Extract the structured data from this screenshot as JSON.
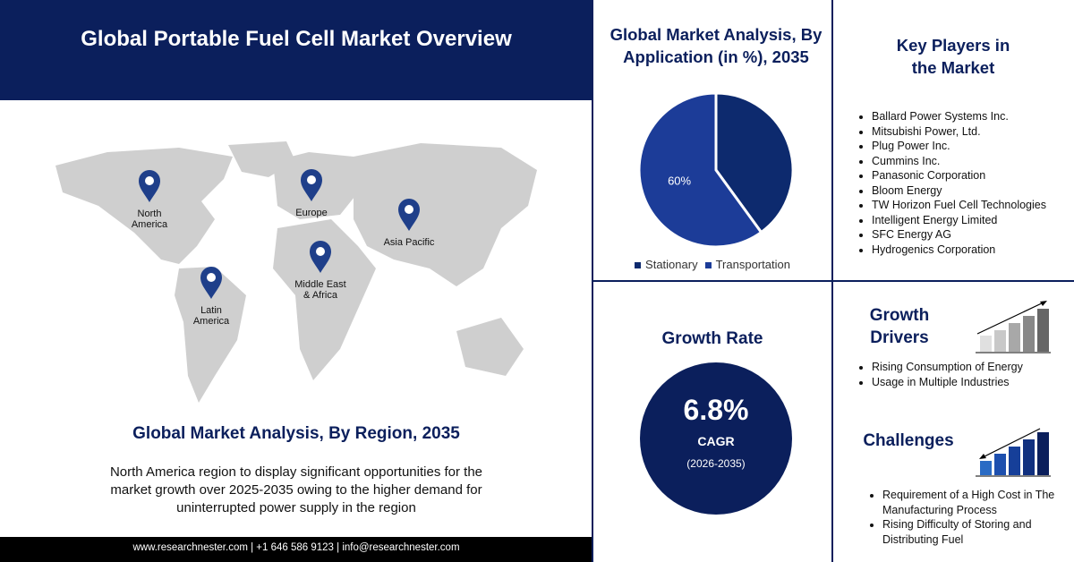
{
  "header": {
    "title": "Global Portable Fuel Cell Market Overview"
  },
  "map": {
    "regions": [
      [
        "North",
        "America"
      ],
      [
        "Europe"
      ],
      [
        "Asia Pacific"
      ],
      [
        "Middle East",
        "& Africa"
      ],
      [
        "Latin",
        "America"
      ]
    ]
  },
  "region_analysis": {
    "title": "Global Market Analysis, By Region, 2035",
    "description": "North America region to display significant opportunities for the market growth over 2025-2035 owing to the higher demand for uninterrupted power supply in the region"
  },
  "footer": {
    "contact": "www.researchnester.com | +1 646 586 9123 | info@researchnester.com"
  },
  "chart_data": {
    "type": "pie",
    "title": "Global Market Analysis, By Application (in %), 2035",
    "categories": [
      "Stationary",
      "Transportation"
    ],
    "values": [
      40,
      60
    ],
    "value_labels": [
      null,
      "60%"
    ],
    "colors": [
      "#0d2a6e",
      "#1c3c98"
    ]
  },
  "key_players": {
    "title": "Key Players in the Market",
    "items": [
      "Ballard Power Systems Inc.",
      "Mitsubishi Power, Ltd.",
      "Plug Power Inc.",
      "Cummins Inc.",
      "Panasonic Corporation",
      "Bloom Energy",
      "TW Horizon Fuel Cell Technologies",
      "Intelligent Energy Limited",
      "SFC Energy AG",
      "Hydrogenics Corporation"
    ]
  },
  "growth_rate": {
    "title": "Growth Rate",
    "value": "6.8%",
    "label": "CAGR",
    "period": "(2026-2035)"
  },
  "growth_drivers": {
    "title": "Growth Drivers",
    "items": [
      "Rising Consumption of Energy",
      "Usage in Multiple Industries"
    ]
  },
  "challenges": {
    "title": "Challenges",
    "items": [
      "Requirement of a High Cost in The Manufacturing Process",
      "Rising Difficulty of Storing and Distributing Fuel"
    ]
  }
}
